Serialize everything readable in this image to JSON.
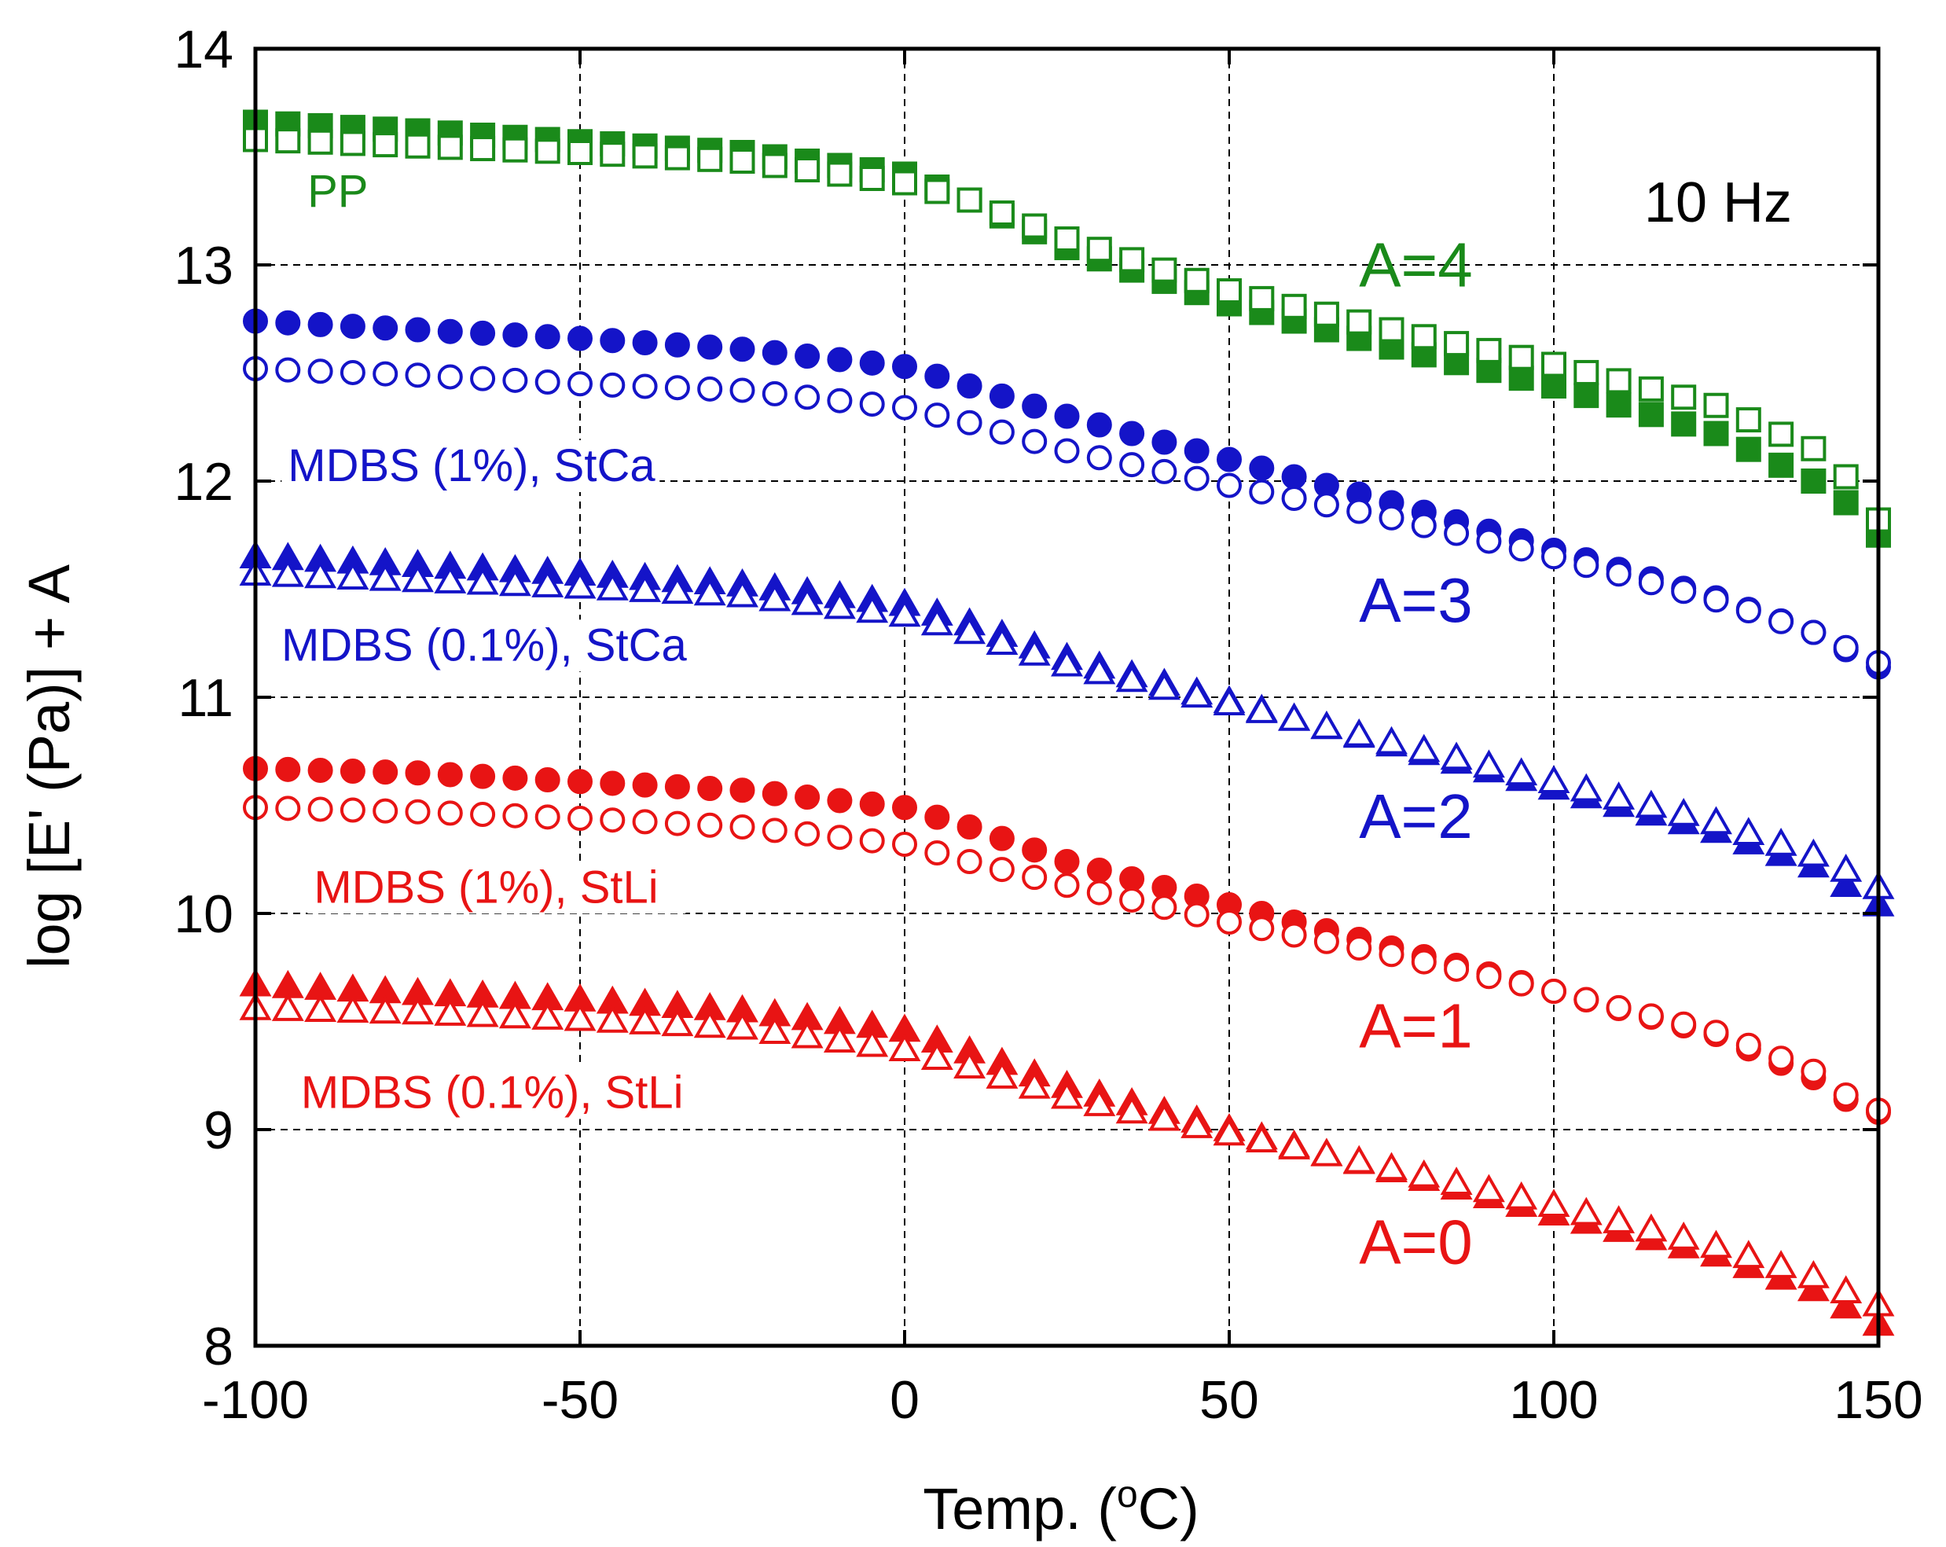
{
  "chart_data": {
    "type": "scatter",
    "title": "",
    "frequency_label": "10 Hz",
    "xlabel": {
      "prefix": "Temp. (",
      "sup": "o",
      "suffix": "C)"
    },
    "ylabel": "log [E' (Pa)] + A",
    "xlim": [
      -100,
      150
    ],
    "ylim": [
      8,
      14
    ],
    "xticks": [
      -100,
      -50,
      0,
      50,
      100,
      150
    ],
    "yticks": [
      8,
      9,
      10,
      11,
      12,
      13,
      14
    ],
    "xtick_labels": [
      "-100",
      "-50",
      "0",
      "50",
      "100",
      "150"
    ],
    "ytick_labels": [
      "8",
      "9",
      "10",
      "11",
      "12",
      "13",
      "14"
    ],
    "grid": true,
    "legend": "none",
    "series": [
      {
        "marker": "square",
        "filled": true,
        "color": "#1a8a1a",
        "x": [
          -100,
          -75,
          -50,
          -25,
          0,
          10,
          25,
          50,
          75,
          100,
          125,
          140,
          145,
          150
        ],
        "y": [
          13.66,
          13.62,
          13.57,
          13.52,
          13.42,
          13.3,
          13.08,
          12.82,
          12.62,
          12.44,
          12.22,
          12.0,
          11.9,
          11.75
        ]
      },
      {
        "marker": "square",
        "filled": false,
        "color": "#1a8a1a",
        "x": [
          -100,
          -75,
          -50,
          -25,
          0,
          10,
          25,
          50,
          75,
          100,
          125,
          140,
          145,
          150
        ],
        "y": [
          13.58,
          13.55,
          13.52,
          13.48,
          13.38,
          13.3,
          13.12,
          12.88,
          12.7,
          12.54,
          12.35,
          12.15,
          12.02,
          11.82
        ]
      },
      {
        "marker": "circle",
        "filled": true,
        "color": "#1414c8",
        "x": [
          -100,
          -75,
          -50,
          -25,
          0,
          10,
          25,
          50,
          75,
          100,
          125,
          140,
          145,
          150
        ],
        "y": [
          12.74,
          12.7,
          12.66,
          12.61,
          12.53,
          12.44,
          12.3,
          12.1,
          11.9,
          11.68,
          11.46,
          11.3,
          11.22,
          11.14
        ]
      },
      {
        "marker": "circle",
        "filled": false,
        "color": "#1414c8",
        "x": [
          -100,
          -75,
          -50,
          -25,
          0,
          10,
          25,
          50,
          75,
          100,
          125,
          140,
          145,
          150
        ],
        "y": [
          12.52,
          12.49,
          12.45,
          12.42,
          12.34,
          12.27,
          12.14,
          11.98,
          11.83,
          11.65,
          11.45,
          11.3,
          11.23,
          11.16
        ]
      },
      {
        "marker": "triangle",
        "filled": true,
        "color": "#1414c8",
        "x": [
          -100,
          -75,
          -50,
          -25,
          0,
          10,
          25,
          50,
          75,
          100,
          125,
          140,
          145,
          150
        ],
        "y": [
          11.65,
          11.61,
          11.57,
          11.52,
          11.43,
          11.34,
          11.18,
          10.98,
          10.78,
          10.58,
          10.38,
          10.22,
          10.13,
          10.04
        ]
      },
      {
        "marker": "triangle",
        "filled": false,
        "color": "#1414c8",
        "x": [
          -100,
          -75,
          -50,
          -25,
          0,
          10,
          25,
          50,
          75,
          100,
          125,
          140,
          145,
          150
        ],
        "y": [
          11.57,
          11.54,
          11.51,
          11.47,
          11.38,
          11.3,
          11.15,
          10.97,
          10.79,
          10.61,
          10.42,
          10.27,
          10.2,
          10.12
        ]
      },
      {
        "marker": "circle",
        "filled": true,
        "color": "#e81414",
        "x": [
          -100,
          -75,
          -50,
          -25,
          0,
          10,
          25,
          50,
          75,
          100,
          125,
          140,
          145,
          150
        ],
        "y": [
          10.67,
          10.65,
          10.61,
          10.57,
          10.49,
          10.4,
          10.24,
          10.04,
          9.84,
          9.64,
          9.44,
          9.24,
          9.14,
          9.08
        ]
      },
      {
        "marker": "circle",
        "filled": false,
        "color": "#e81414",
        "x": [
          -100,
          -75,
          -50,
          -25,
          0,
          10,
          25,
          50,
          75,
          100,
          125,
          140,
          145,
          150
        ],
        "y": [
          10.49,
          10.47,
          10.44,
          10.4,
          10.32,
          10.24,
          10.13,
          9.96,
          9.81,
          9.64,
          9.45,
          9.27,
          9.16,
          9.09
        ]
      },
      {
        "marker": "triangle",
        "filled": true,
        "color": "#e81414",
        "x": [
          -100,
          -75,
          -50,
          -25,
          0,
          10,
          25,
          50,
          75,
          100,
          125,
          140,
          145,
          150
        ],
        "y": [
          9.67,
          9.63,
          9.6,
          9.55,
          9.46,
          9.36,
          9.2,
          9.0,
          8.81,
          8.61,
          8.42,
          8.26,
          8.18,
          8.1
        ]
      },
      {
        "marker": "triangle",
        "filled": false,
        "color": "#e81414",
        "x": [
          -100,
          -75,
          -50,
          -25,
          0,
          10,
          25,
          50,
          75,
          100,
          125,
          140,
          145,
          150
        ],
        "y": [
          9.56,
          9.54,
          9.51,
          9.47,
          9.37,
          9.29,
          9.15,
          8.98,
          8.82,
          8.65,
          8.46,
          8.32,
          8.25,
          8.19
        ]
      }
    ],
    "annotations": [
      {
        "text": "PP",
        "x": -92,
        "y": 13.27,
        "color": "#1a8a1a",
        "size": "small"
      },
      {
        "text": "A=4",
        "x": 70,
        "y": 12.9,
        "color": "#1a8a1a",
        "size": "large"
      },
      {
        "text": "MDBS (1%), StCa",
        "x": -95,
        "y": 12.0,
        "color": "#1414c8",
        "size": "small"
      },
      {
        "text": "A=3",
        "x": 70,
        "y": 11.35,
        "color": "#1414c8",
        "size": "large"
      },
      {
        "text": "MDBS (0.1%), StCa",
        "x": -96,
        "y": 11.17,
        "color": "#1414c8",
        "size": "small"
      },
      {
        "text": "A=2",
        "x": 70,
        "y": 10.35,
        "color": "#1414c8",
        "size": "large"
      },
      {
        "text": "MDBS (1%), StLi",
        "x": -91,
        "y": 10.05,
        "color": "#e81414",
        "size": "small"
      },
      {
        "text": "A=1",
        "x": 70,
        "y": 9.38,
        "color": "#e81414",
        "size": "large"
      },
      {
        "text": "MDBS (0.1%), StLi",
        "x": -93,
        "y": 9.1,
        "color": "#e81414",
        "size": "small"
      },
      {
        "text": "A=0",
        "x": 70,
        "y": 8.38,
        "color": "#e81414",
        "size": "large"
      }
    ]
  }
}
